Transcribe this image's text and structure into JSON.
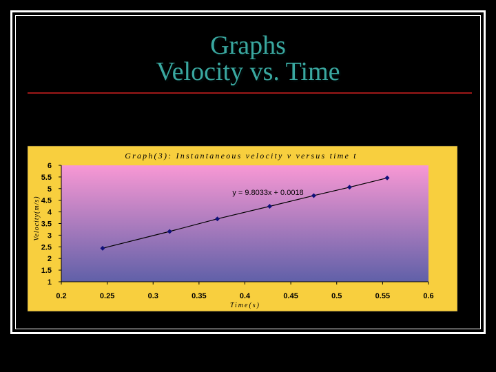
{
  "slide": {
    "title_line1": "Graphs",
    "title_line2": "Velocity vs. Time"
  },
  "colors": {
    "chart_area": "#f8cf3e",
    "plot_top": "#f898d4",
    "plot_bottom": "#6060a8",
    "line": "#000000",
    "marker": "#10107a",
    "title_text": "#3aa8a0",
    "rule": "#a01818"
  },
  "chart_data": {
    "type": "scatter",
    "title": "Graph(3): Instantaneous velocity v versus time t",
    "xlabel": "Time(s)",
    "ylabel": "Velocity(m/s)",
    "xlim": [
      0.2,
      0.6
    ],
    "ylim": [
      1,
      6
    ],
    "x_ticks": [
      "0.2",
      "0.25",
      "0.3",
      "0.35",
      "0.4",
      "0.45",
      "0.5",
      "0.55",
      "0.6"
    ],
    "x_tick_values": [
      0.2,
      0.25,
      0.3,
      0.35,
      0.4,
      0.45,
      0.5,
      0.55,
      0.6
    ],
    "y_ticks": [
      "1",
      "1.5",
      "2",
      "2.5",
      "3",
      "3.5",
      "4",
      "4.5",
      "5",
      "5.5",
      "6"
    ],
    "y_tick_values": [
      1,
      1.5,
      2,
      2.5,
      3,
      3.5,
      4,
      4.5,
      5,
      5.5,
      6
    ],
    "grid": false,
    "series": [
      {
        "x": [
          0.245,
          0.318,
          0.37,
          0.427,
          0.475,
          0.514,
          0.555
        ],
        "y": [
          2.44,
          3.16,
          3.7,
          4.24,
          4.7,
          5.06,
          5.46
        ]
      }
    ],
    "trendline": {
      "equation": "y = 9.8033x + 0.0018",
      "slope": 9.8033,
      "intercept": 0.0018
    }
  }
}
